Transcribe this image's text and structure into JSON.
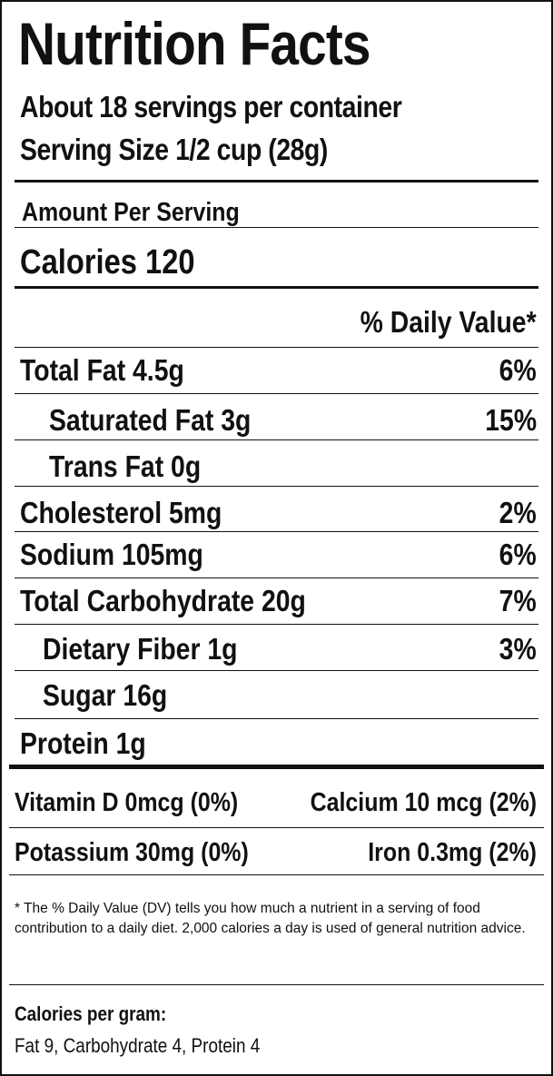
{
  "label": {
    "title": "Nutrition Facts",
    "servings_per_container": "About 18  servings per container",
    "serving_size": "Serving Size 1/2 cup (28g)",
    "amount_per_serving": "Amount Per Serving",
    "calories": "Calories 120",
    "daily_value_header": "% Daily Value*",
    "nutrients": [
      {
        "name": "Total Fat 4.5g",
        "dv": "6%"
      },
      {
        "name": "Saturated Fat 3g",
        "dv": "15%"
      },
      {
        "name": "Trans Fat 0g",
        "dv": ""
      },
      {
        "name": "Cholesterol 5mg",
        "dv": "2%"
      },
      {
        "name": "Sodium 105mg",
        "dv": "6%"
      },
      {
        "name": "Total Carbohydrate 20g",
        "dv": "7%"
      },
      {
        "name": "Dietary Fiber 1g",
        "dv": "3%"
      },
      {
        "name": "Sugar 16g",
        "dv": ""
      },
      {
        "name": "Protein 1g",
        "dv": ""
      }
    ],
    "vitamins": [
      {
        "left": "Vitamin D 0mcg (0%)",
        "right": "Calcium 10 mcg (2%)"
      },
      {
        "left": "Potassium 30mg (0%)",
        "right": "Iron 0.3mg  (2%)"
      }
    ],
    "footnote": "* The % Daily Value (DV) tells you how much a nutrient in a serving of food contribution to a daily diet. 2,000 calories a day is used of general nutrition advice.",
    "calories_per_gram_label": "Calories per gram:",
    "calories_per_gram_value": "Fat 9, Carbohydrate 4, Protein 4"
  }
}
